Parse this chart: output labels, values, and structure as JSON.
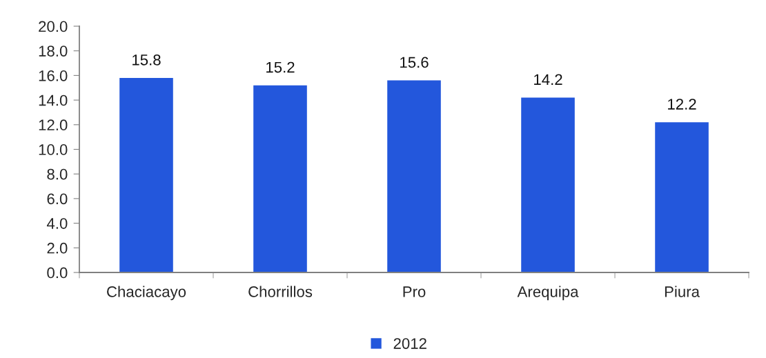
{
  "chart_data": {
    "type": "bar",
    "categories": [
      "Chaciacayo",
      "Chorrillos",
      "Pro",
      "Arequipa",
      "Piura"
    ],
    "series": [
      {
        "name": "2012",
        "color": "#2357dc",
        "values": [
          15.8,
          15.2,
          15.6,
          14.2,
          12.2
        ]
      }
    ],
    "ylim": [
      0,
      20
    ],
    "yticks": [
      {
        "value": 0,
        "label": "0.0"
      },
      {
        "value": 2,
        "label": "2.0"
      },
      {
        "value": 4,
        "label": "4.0"
      },
      {
        "value": 6,
        "label": "6.0"
      },
      {
        "value": 8,
        "label": "8.0"
      },
      {
        "value": 10,
        "label": "10.0"
      },
      {
        "value": 12,
        "label": "12.0"
      },
      {
        "value": 14,
        "label": "14.0"
      },
      {
        "value": 16,
        "label": "16.0"
      },
      {
        "value": 18,
        "label": "18.0"
      },
      {
        "value": 20,
        "label": "20.0"
      }
    ],
    "data_labels": true,
    "grid": false,
    "legend": "bottom"
  }
}
